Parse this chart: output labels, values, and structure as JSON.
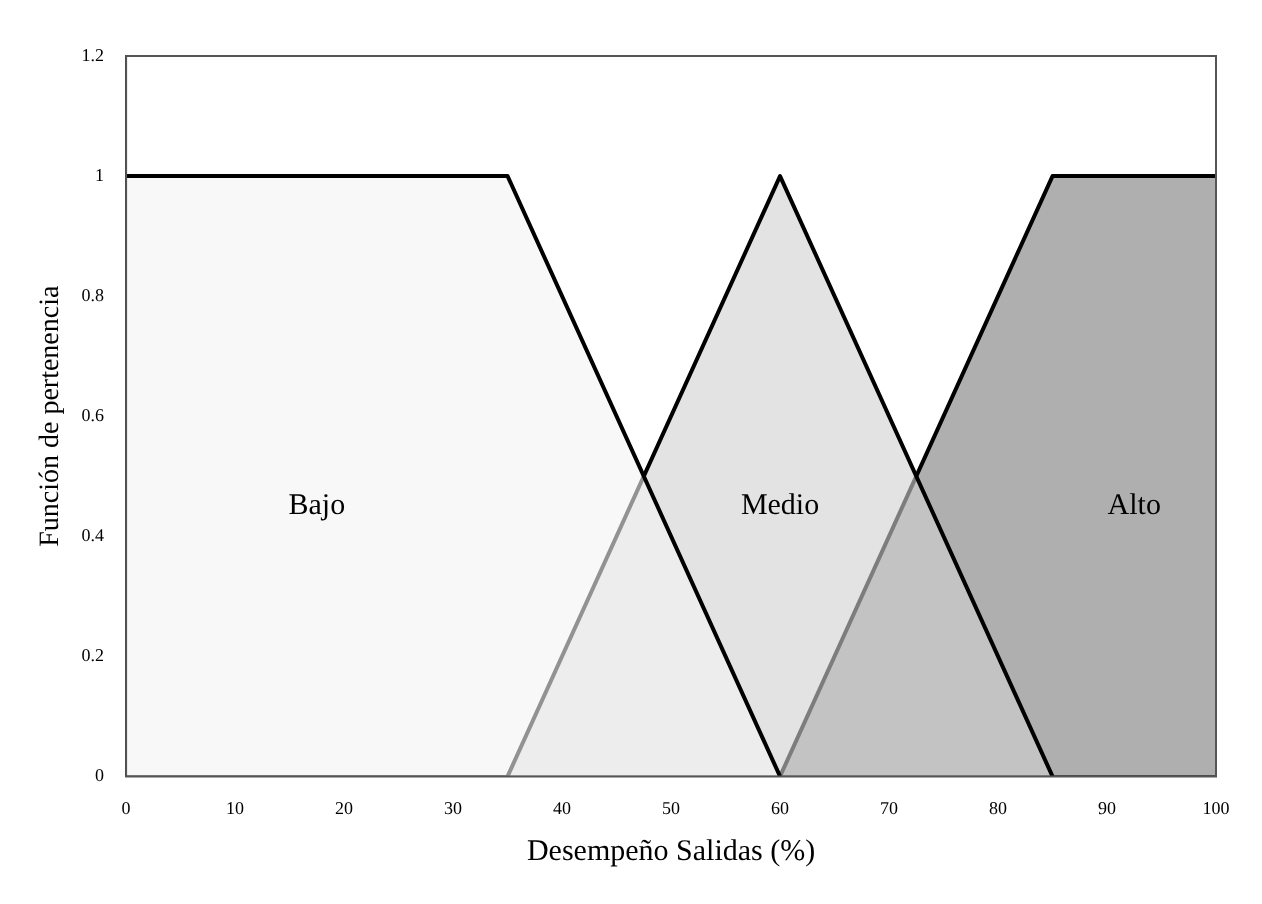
{
  "chart_data": {
    "type": "area",
    "xlabel": "Desempeño Salidas (%)",
    "ylabel": "Función de pertenencia",
    "series": [
      {
        "name": "Bajo",
        "color": "#f4f4f4",
        "x": [
          0,
          35,
          60
        ],
        "values": [
          1,
          1,
          0
        ]
      },
      {
        "name": "Medio",
        "color": "#d0d0d0",
        "x": [
          35,
          60,
          85
        ],
        "values": [
          0,
          1,
          0
        ]
      },
      {
        "name": "Alto",
        "color": "#7a7a7a",
        "x": [
          60,
          85,
          100
        ],
        "values": [
          0,
          1,
          1
        ]
      }
    ],
    "xlim": [
      0,
      100
    ],
    "xticks": [
      0,
      10,
      20,
      30,
      40,
      50,
      60,
      70,
      80,
      90,
      100
    ],
    "ylim": [
      0,
      1.2
    ],
    "yticks": [
      0,
      0.2,
      0.4,
      0.6,
      0.8,
      1,
      1.2
    ],
    "grid": false,
    "legend": false,
    "marker": "none",
    "line_style": "solid"
  }
}
